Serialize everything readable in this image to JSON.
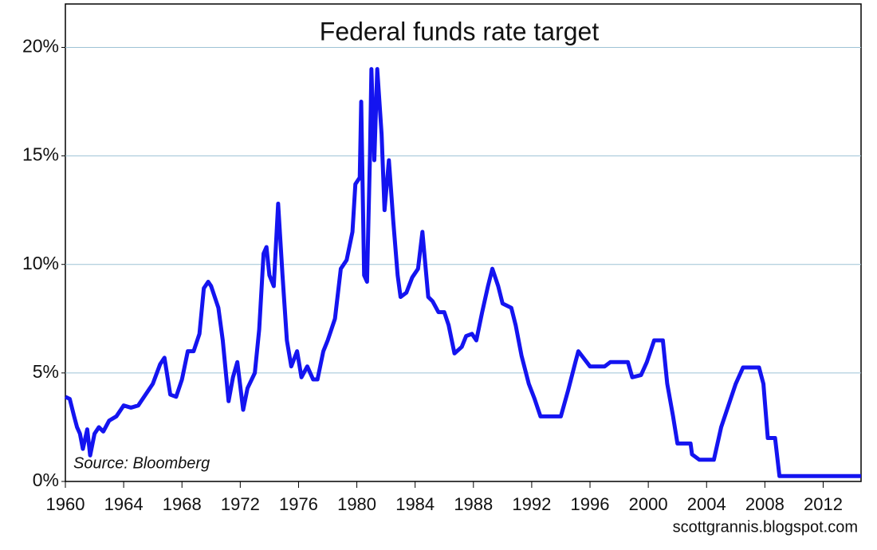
{
  "chart_data": {
    "type": "line",
    "title": "Federal funds rate target",
    "annotations": [
      "Source: Bloomberg",
      "scottgrannis.blogspot.com"
    ],
    "color": "#1414f0",
    "grid": true,
    "xlim": [
      1960,
      2014.6
    ],
    "xticks": [
      1960,
      1964,
      1968,
      1972,
      1976,
      1980,
      1984,
      1988,
      1992,
      1996,
      2000,
      2004,
      2008,
      2012
    ],
    "ylim": [
      0,
      22
    ],
    "yticks": [
      {
        "value": 0,
        "label": "0%"
      },
      {
        "value": 5,
        "label": "5%"
      },
      {
        "value": 10,
        "label": "10%"
      },
      {
        "value": 15,
        "label": "15%"
      },
      {
        "value": 20,
        "label": "20%"
      }
    ],
    "x": [
      1960.0,
      1960.3,
      1960.6,
      1960.8,
      1961.0,
      1961.2,
      1961.5,
      1961.7,
      1962.0,
      1962.3,
      1962.6,
      1963.0,
      1963.5,
      1964.0,
      1964.5,
      1965.0,
      1965.5,
      1966.0,
      1966.5,
      1966.8,
      1967.2,
      1967.6,
      1968.0,
      1968.4,
      1968.8,
      1969.2,
      1969.5,
      1969.8,
      1970.0,
      1970.5,
      1970.8,
      1971.2,
      1971.5,
      1971.8,
      1972.2,
      1972.5,
      1973.0,
      1973.3,
      1973.6,
      1973.8,
      1974.0,
      1974.3,
      1974.6,
      1974.9,
      1975.2,
      1975.5,
      1975.9,
      1976.2,
      1976.6,
      1977.0,
      1977.3,
      1977.7,
      1978.0,
      1978.5,
      1978.9,
      1979.3,
      1979.7,
      1979.9,
      1980.2,
      1980.3,
      1980.5,
      1980.7,
      1980.9,
      1981.0,
      1981.2,
      1981.4,
      1981.7,
      1981.9,
      1982.2,
      1982.5,
      1982.8,
      1983.0,
      1983.4,
      1983.8,
      1984.2,
      1984.5,
      1984.9,
      1985.2,
      1985.6,
      1986.0,
      1986.3,
      1986.7,
      1987.2,
      1987.5,
      1987.9,
      1988.2,
      1988.6,
      1989.0,
      1989.3,
      1989.7,
      1990.0,
      1990.6,
      1990.9,
      1991.3,
      1991.8,
      1992.2,
      1992.6,
      1993.0,
      1994.0,
      1994.5,
      1995.0,
      1995.2,
      1996.0,
      1997.0,
      1997.4,
      1998.6,
      1998.9,
      1999.5,
      1999.9,
      2000.4,
      2001.0,
      2001.3,
      2001.7,
      2002.0,
      2002.9,
      2003.0,
      2003.5,
      2004.5,
      2005.0,
      2005.5,
      2006.0,
      2006.5,
      2007.6,
      2007.9,
      2008.2,
      2008.7,
      2009.0,
      2014.6
    ],
    "values": [
      3.9,
      3.8,
      3.0,
      2.5,
      2.2,
      1.5,
      2.4,
      1.2,
      2.2,
      2.5,
      2.3,
      2.8,
      3.0,
      3.5,
      3.4,
      3.5,
      4.0,
      4.5,
      5.4,
      5.7,
      4.0,
      3.9,
      4.7,
      6.0,
      6.0,
      6.8,
      8.9,
      9.2,
      9.0,
      8.0,
      6.5,
      3.7,
      4.8,
      5.5,
      3.3,
      4.3,
      5.0,
      7.0,
      10.5,
      10.8,
      9.5,
      9.0,
      12.8,
      9.5,
      6.5,
      5.3,
      6.0,
      4.8,
      5.3,
      4.7,
      4.7,
      6.0,
      6.5,
      7.5,
      9.8,
      10.2,
      11.5,
      13.7,
      14.0,
      17.5,
      9.5,
      9.2,
      15.0,
      19.0,
      14.8,
      19.0,
      16.0,
      12.5,
      14.8,
      12.0,
      9.5,
      8.5,
      8.7,
      9.4,
      9.8,
      11.5,
      8.5,
      8.3,
      7.8,
      7.8,
      7.2,
      5.9,
      6.2,
      6.7,
      6.8,
      6.5,
      7.8,
      9.0,
      9.8,
      9.0,
      8.2,
      8.0,
      7.2,
      5.8,
      4.5,
      3.8,
      3.0,
      3.0,
      3.0,
      4.2,
      5.5,
      6.0,
      5.3,
      5.3,
      5.5,
      5.5,
      4.8,
      4.9,
      5.5,
      6.5,
      6.5,
      4.5,
      3.0,
      1.75,
      1.75,
      1.25,
      1.0,
      1.0,
      2.5,
      3.5,
      4.5,
      5.25,
      5.25,
      4.5,
      2.0,
      2.0,
      0.25,
      0.25
    ]
  }
}
